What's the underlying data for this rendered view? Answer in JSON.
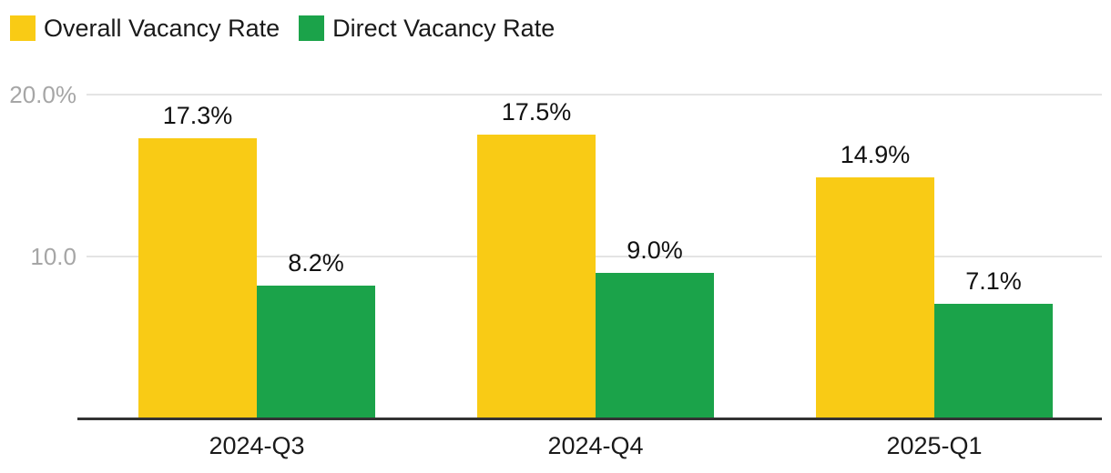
{
  "legend": {
    "items": [
      {
        "label": "Overall Vacancy Rate",
        "color": "#F9CB15"
      },
      {
        "label": "Direct Vacancy Rate",
        "color": "#1BA34A"
      }
    ]
  },
  "chart_data": {
    "type": "bar",
    "title": "",
    "xlabel": "",
    "ylabel": "",
    "categories": [
      "2024-Q3",
      "2024-Q4",
      "2025-Q1"
    ],
    "series": [
      {
        "name": "Overall Vacancy Rate",
        "color": "#F9CB15",
        "values": [
          17.3,
          17.5,
          14.9
        ],
        "labels": [
          "17.3%",
          "17.5%",
          "14.9%"
        ]
      },
      {
        "name": "Direct Vacancy Rate",
        "color": "#1BA34A",
        "values": [
          8.2,
          9.0,
          7.1
        ],
        "labels": [
          "8.2%",
          "9.0%",
          "7.1%"
        ]
      }
    ],
    "yticks": [
      {
        "value": 20,
        "label": "20.0%"
      },
      {
        "value": 10,
        "label": "10.0"
      }
    ],
    "ylim": [
      0,
      22.5
    ],
    "grid": true,
    "legend_position": "top-left",
    "colors": {
      "grid": "#E4E4E4",
      "axis": "#333333",
      "tick_text": "#A6A6A6",
      "value_text": "#111111"
    }
  }
}
